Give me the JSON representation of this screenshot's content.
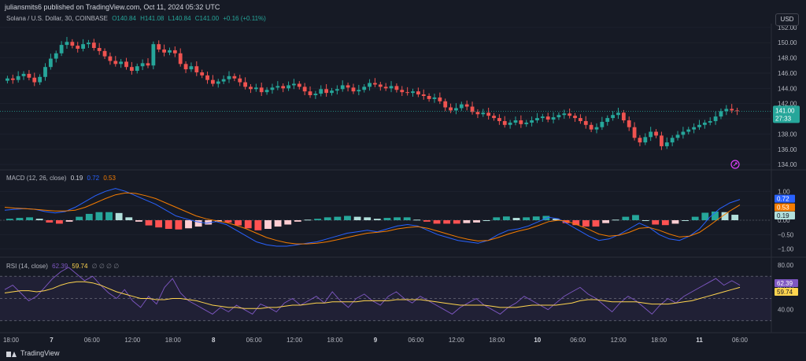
{
  "header": {
    "publish_text": "juliansmits6 published on TradingView.com, Oct 11, 2024 05:32 UTC"
  },
  "price_legend": {
    "title": "Solana / U.S. Dollar, 30, COINBASE",
    "open": "O140.84",
    "high": "H141.08",
    "low": "L140.84",
    "close": "C141.00",
    "change": "+0.16 (+0.11%)"
  },
  "macd_legend": {
    "title": "MACD (12, 26, close)",
    "hist": "0.19",
    "macd": "0.72",
    "signal": "0.53"
  },
  "rsi_legend": {
    "title": "RSI (14, close)",
    "rsi": "62.39",
    "ma": "59.74",
    "extra": "∅ ∅ ∅ ∅"
  },
  "currency": "USD",
  "countdown": "27:33",
  "footer": {
    "brand": "TradingView"
  },
  "colors": {
    "background": "#161a25",
    "up": "#26a69a",
    "down": "#ef5350",
    "macd_line": "#2962ff",
    "signal_line": "#f57c00",
    "rsi_line": "#7e57c2",
    "rsi_ma": "#ffd54f"
  },
  "chart_data": [
    {
      "type": "candlestick",
      "title": "Solana / U.S. Dollar, 30, COINBASE",
      "ylim": [
        133.5,
        152.5
      ],
      "yticks": [
        "152.00",
        "150.00",
        "148.00",
        "146.00",
        "144.00",
        "142.00",
        "140.00",
        "138.00",
        "136.00",
        "134.00"
      ],
      "current_price": "141.00",
      "x_ticks": [
        "18:00",
        "7",
        "06:00",
        "12:00",
        "18:00",
        "8",
        "06:00",
        "12:00",
        "18:00",
        "9",
        "06:00",
        "12:00",
        "18:00",
        "10",
        "06:00",
        "12:00",
        "18:00",
        "11",
        "06:00"
      ],
      "close_series": [
        145.3,
        145.1,
        145.6,
        145.9,
        145.4,
        144.8,
        145.5,
        146.8,
        147.9,
        148.6,
        149.7,
        150.1,
        149.6,
        149.2,
        149.8,
        150.0,
        149.3,
        148.9,
        148.2,
        147.6,
        147.2,
        147.5,
        146.8,
        146.3,
        146.9,
        147.3,
        147.0,
        149.8,
        149.1,
        148.7,
        149.0,
        148.6,
        147.2,
        146.5,
        146.9,
        146.1,
        145.7,
        145.1,
        144.6,
        144.9,
        145.2,
        145.6,
        145.3,
        144.8,
        144.2,
        143.9,
        144.1,
        143.5,
        143.8,
        144.1,
        144.3,
        144.0,
        144.4,
        144.6,
        144.2,
        143.6,
        143.1,
        143.3,
        143.9,
        143.4,
        143.7,
        143.9,
        144.4,
        144.1,
        143.6,
        143.8,
        144.2,
        144.7,
        144.5,
        144.2,
        144.0,
        144.3,
        143.8,
        143.5,
        143.4,
        143.6,
        143.2,
        143.0,
        142.6,
        142.8,
        142.3,
        141.5,
        141.1,
        141.4,
        141.9,
        141.6,
        140.9,
        140.6,
        140.8,
        140.4,
        140.1,
        139.7,
        139.2,
        139.5,
        139.8,
        139.3,
        139.5,
        139.8,
        140.1,
        140.3,
        139.9,
        140.2,
        140.5,
        140.7,
        140.4,
        140.1,
        139.7,
        139.2,
        138.6,
        138.9,
        139.6,
        140.1,
        140.5,
        140.8,
        139.8,
        138.9,
        137.5,
        136.9,
        137.6,
        138.3,
        137.8,
        136.4,
        136.9,
        137.5,
        137.9,
        138.3,
        138.6,
        138.9,
        139.2,
        139.5,
        139.7,
        140.3,
        141.0,
        141.3,
        141.1,
        141.0
      ]
    },
    {
      "type": "line",
      "title": "MACD (12, 26, close)",
      "ylim": [
        -1.2,
        1.2
      ],
      "yticks": [
        "1.00",
        "0.50",
        "0.00",
        "−0.50",
        "−1.00"
      ],
      "series": [
        {
          "name": "MACD",
          "values": [
            0.35,
            0.38,
            0.4,
            0.38,
            0.3,
            0.25,
            0.3,
            0.45,
            0.65,
            0.85,
            1.0,
            1.1,
            1.0,
            0.85,
            0.7,
            0.55,
            0.35,
            0.15,
            0.05,
            -0.05,
            -0.1,
            -0.05,
            -0.15,
            -0.35,
            -0.55,
            -0.75,
            -0.85,
            -0.9,
            -0.9,
            -0.85,
            -0.8,
            -0.75,
            -0.65,
            -0.55,
            -0.45,
            -0.4,
            -0.35,
            -0.4,
            -0.3,
            -0.2,
            -0.15,
            -0.2,
            -0.35,
            -0.5,
            -0.6,
            -0.7,
            -0.75,
            -0.8,
            -0.7,
            -0.5,
            -0.35,
            -0.3,
            -0.2,
            -0.05,
            0.1,
            0.05,
            -0.15,
            -0.35,
            -0.55,
            -0.7,
            -0.65,
            -0.5,
            -0.3,
            -0.1,
            -0.25,
            -0.5,
            -0.65,
            -0.7,
            -0.55,
            -0.3,
            0.1,
            0.4,
            0.6,
            0.72
          ]
        },
        {
          "name": "Signal",
          "values": [
            0.45,
            0.42,
            0.4,
            0.38,
            0.35,
            0.32,
            0.32,
            0.35,
            0.45,
            0.6,
            0.75,
            0.88,
            0.95,
            0.93,
            0.85,
            0.75,
            0.6,
            0.45,
            0.3,
            0.15,
            0.05,
            -0.02,
            -0.08,
            -0.18,
            -0.3,
            -0.45,
            -0.6,
            -0.7,
            -0.78,
            -0.82,
            -0.82,
            -0.8,
            -0.75,
            -0.68,
            -0.6,
            -0.52,
            -0.45,
            -0.42,
            -0.38,
            -0.3,
            -0.25,
            -0.22,
            -0.28,
            -0.38,
            -0.48,
            -0.58,
            -0.66,
            -0.72,
            -0.7,
            -0.6,
            -0.48,
            -0.38,
            -0.3,
            -0.18,
            -0.05,
            0.0,
            -0.05,
            -0.18,
            -0.32,
            -0.48,
            -0.55,
            -0.52,
            -0.42,
            -0.28,
            -0.25,
            -0.35,
            -0.48,
            -0.58,
            -0.55,
            -0.42,
            -0.18,
            0.08,
            0.32,
            0.53
          ]
        }
      ],
      "histogram": [
        0.05,
        0.08,
        0.1,
        0.05,
        -0.08,
        -0.12,
        -0.05,
        0.12,
        0.22,
        0.28,
        0.28,
        0.25,
        0.1,
        -0.05,
        -0.18,
        -0.25,
        -0.3,
        -0.32,
        -0.28,
        -0.22,
        -0.15,
        -0.05,
        -0.08,
        -0.18,
        -0.28,
        -0.35,
        -0.3,
        -0.22,
        -0.15,
        -0.05,
        0.02,
        0.05,
        0.1,
        0.12,
        0.15,
        0.12,
        0.1,
        0.05,
        0.08,
        0.1,
        0.1,
        0.02,
        -0.05,
        -0.12,
        -0.12,
        -0.12,
        -0.1,
        -0.08,
        0.0,
        0.1,
        0.13,
        0.08,
        0.1,
        0.13,
        0.15,
        0.05,
        -0.1,
        -0.17,
        -0.22,
        -0.22,
        -0.1,
        0.02,
        0.12,
        0.18,
        0.0,
        -0.15,
        -0.17,
        -0.12,
        0.0,
        0.12,
        0.26,
        0.3,
        0.28,
        0.19
      ],
      "current": {
        "macd": "0.72",
        "signal": "0.53",
        "hist": "0.19"
      }
    },
    {
      "type": "line",
      "title": "RSI (14, close)",
      "ylim": [
        20,
        85
      ],
      "yticks": [
        "80.00",
        "60.00",
        "40.00"
      ],
      "bands": [
        70,
        50,
        30
      ],
      "series": [
        {
          "name": "RSI",
          "values": [
            58,
            62,
            55,
            48,
            52,
            60,
            68,
            74,
            78,
            72,
            66,
            70,
            62,
            55,
            50,
            58,
            48,
            42,
            52,
            45,
            60,
            68,
            55,
            48,
            44,
            40,
            36,
            42,
            38,
            44,
            40,
            36,
            45,
            42,
            38,
            46,
            50,
            44,
            48,
            52,
            46,
            56,
            48,
            42,
            50,
            54,
            48,
            44,
            52,
            56,
            50,
            46,
            52,
            48,
            44,
            40,
            36,
            42,
            46,
            50,
            44,
            40,
            36,
            42,
            46,
            52,
            48,
            44,
            40,
            46,
            52,
            56,
            60,
            54,
            50,
            44,
            38,
            46,
            52,
            48,
            42,
            36,
            44,
            50,
            46,
            52,
            56,
            60,
            64,
            68,
            62,
            66,
            62
          ]
        },
        {
          "name": "RSI-based MA",
          "values": [
            55,
            56,
            57,
            57,
            56,
            57,
            59,
            62,
            64,
            65,
            65,
            64,
            62,
            59,
            56,
            54,
            52,
            50,
            50,
            49,
            49,
            50,
            50,
            49,
            48,
            46,
            44,
            43,
            42,
            42,
            41,
            41,
            41,
            42,
            42,
            43,
            44,
            44,
            45,
            46,
            46,
            47,
            47,
            47,
            47,
            48,
            48,
            48,
            48,
            49,
            49,
            49,
            49,
            48,
            47,
            46,
            45,
            44,
            44,
            44,
            44,
            43,
            42,
            42,
            42,
            43,
            44,
            44,
            44,
            44,
            45,
            46,
            48,
            49,
            49,
            48,
            47,
            47,
            47,
            47,
            46,
            45,
            45,
            45,
            46,
            47,
            48,
            50,
            52,
            54,
            56,
            58,
            60
          ]
        }
      ],
      "current": {
        "rsi": "62.39",
        "ma": "59.74"
      }
    }
  ]
}
